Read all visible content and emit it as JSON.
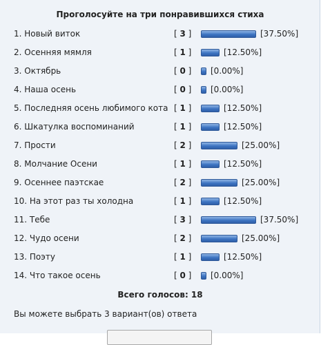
{
  "poll": {
    "title": "Проголосуйте на три понравившихся стиха",
    "options": [
      {
        "label": "1. Новый виток",
        "count": "3",
        "percent": "[37.50%]",
        "value": 37.5
      },
      {
        "label": "2. Осенняя мямля",
        "count": "1",
        "percent": "[12.50%]",
        "value": 12.5
      },
      {
        "label": "3. Октябрь",
        "count": "0",
        "percent": "[0.00%]",
        "value": 0
      },
      {
        "label": "4. Наша осень",
        "count": "0",
        "percent": "[0.00%]",
        "value": 0
      },
      {
        "label": "5. Последняя осень любимого кота",
        "count": "1",
        "percent": "[12.50%]",
        "value": 12.5
      },
      {
        "label": "6. Шкатулка воспоминаний",
        "count": "1",
        "percent": "[12.50%]",
        "value": 12.5
      },
      {
        "label": "7. Прости",
        "count": "2",
        "percent": "[25.00%]",
        "value": 25
      },
      {
        "label": "8. Молчание Осени",
        "count": "1",
        "percent": "[12.50%]",
        "value": 12.5
      },
      {
        "label": "9. Осеннее паэтскае",
        "count": "2",
        "percent": "[25.00%]",
        "value": 25
      },
      {
        "label": "10. На этот раз ты холодна",
        "count": "1",
        "percent": "[12.50%]",
        "value": 12.5
      },
      {
        "label": "11. Тебе",
        "count": "3",
        "percent": "[37.50%]",
        "value": 37.5
      },
      {
        "label": "12. Чудо осени",
        "count": "2",
        "percent": "[25.00%]",
        "value": 25
      },
      {
        "label": "13. Поэту",
        "count": "1",
        "percent": "[12.50%]",
        "value": 12.5
      },
      {
        "label": "14. Что такое осень",
        "count": "0",
        "percent": "[0.00%]",
        "value": 0
      }
    ],
    "total_label": "Всего голосов: 18",
    "note": "Вы можете выбрать 3 вариант(ов) ответа"
  },
  "colors": {
    "panel_bg": "#eff3f8",
    "bar_fill": "#3d74c2"
  }
}
